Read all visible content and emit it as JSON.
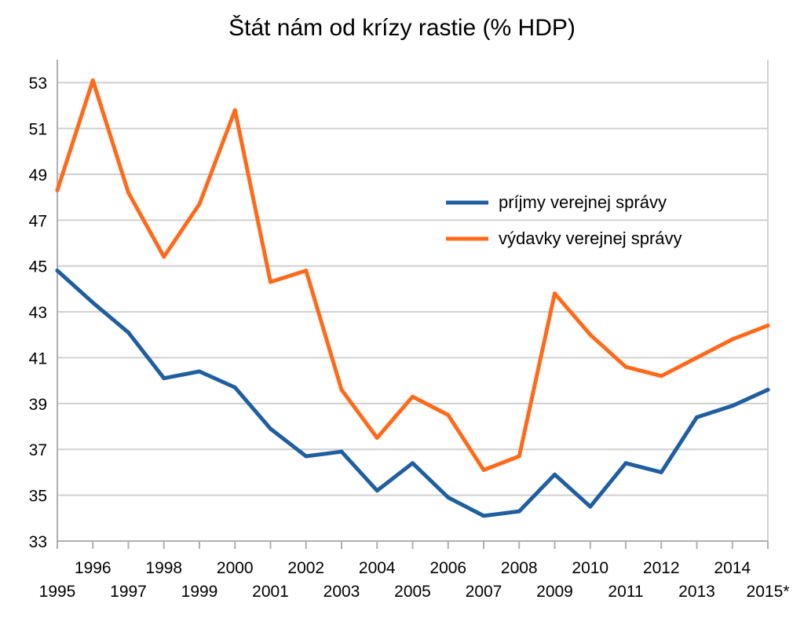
{
  "chart_data": {
    "type": "line",
    "title": "Štát nám od krízy rastie (% HDP)",
    "xlabel": "",
    "ylabel": "",
    "x": [
      "1995",
      "1996",
      "1997",
      "1998",
      "1999",
      "2000",
      "2001",
      "2002",
      "2003",
      "2004",
      "2005",
      "2006",
      "2007",
      "2008",
      "2009",
      "2010",
      "2011",
      "2012",
      "2013",
      "2014",
      "2015*"
    ],
    "ylim": [
      33,
      54
    ],
    "yticks": [
      33,
      35,
      37,
      39,
      41,
      43,
      45,
      47,
      49,
      51,
      53
    ],
    "grid": true,
    "legend_position": "right",
    "series": [
      {
        "name": "príjmy verejnej správy",
        "color": "#1f5fa0",
        "values": [
          44.8,
          43.4,
          42.1,
          40.1,
          40.4,
          39.7,
          37.9,
          36.7,
          36.9,
          35.2,
          36.4,
          34.9,
          34.1,
          34.3,
          35.9,
          34.5,
          36.4,
          36.0,
          38.4,
          38.9,
          39.6
        ]
      },
      {
        "name": "výdavky verejnej správy",
        "color": "#ff6a1a",
        "values": [
          48.3,
          53.1,
          48.2,
          45.4,
          47.7,
          51.8,
          44.3,
          44.8,
          39.6,
          37.5,
          39.3,
          38.5,
          36.1,
          36.7,
          43.8,
          42.0,
          40.6,
          40.2,
          41.0,
          41.8,
          42.4
        ]
      }
    ]
  }
}
